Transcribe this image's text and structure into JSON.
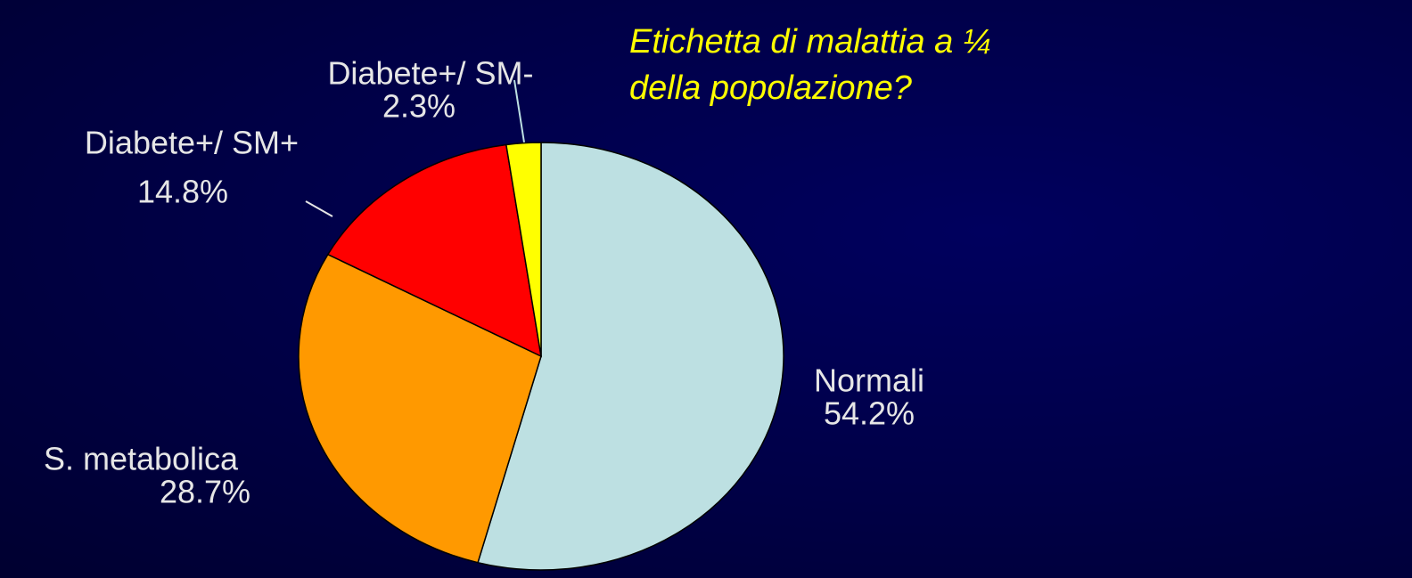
{
  "chart_data": {
    "type": "pie",
    "annotation": [
      "Etichetta di malattia a ¼",
      "della popolazione?"
    ],
    "categories": [
      "Normali",
      "S. metabolica",
      "Diabete+/ SM+",
      "Diabete+/ SM-"
    ],
    "values": [
      54.2,
      28.7,
      14.8,
      2.3
    ],
    "value_labels": [
      "54.2%",
      "28.7%",
      "14.8%",
      "2.3%"
    ],
    "colors": [
      "#bde0e2",
      "#ff9900",
      "#ff0000",
      "#ffff00"
    ]
  }
}
